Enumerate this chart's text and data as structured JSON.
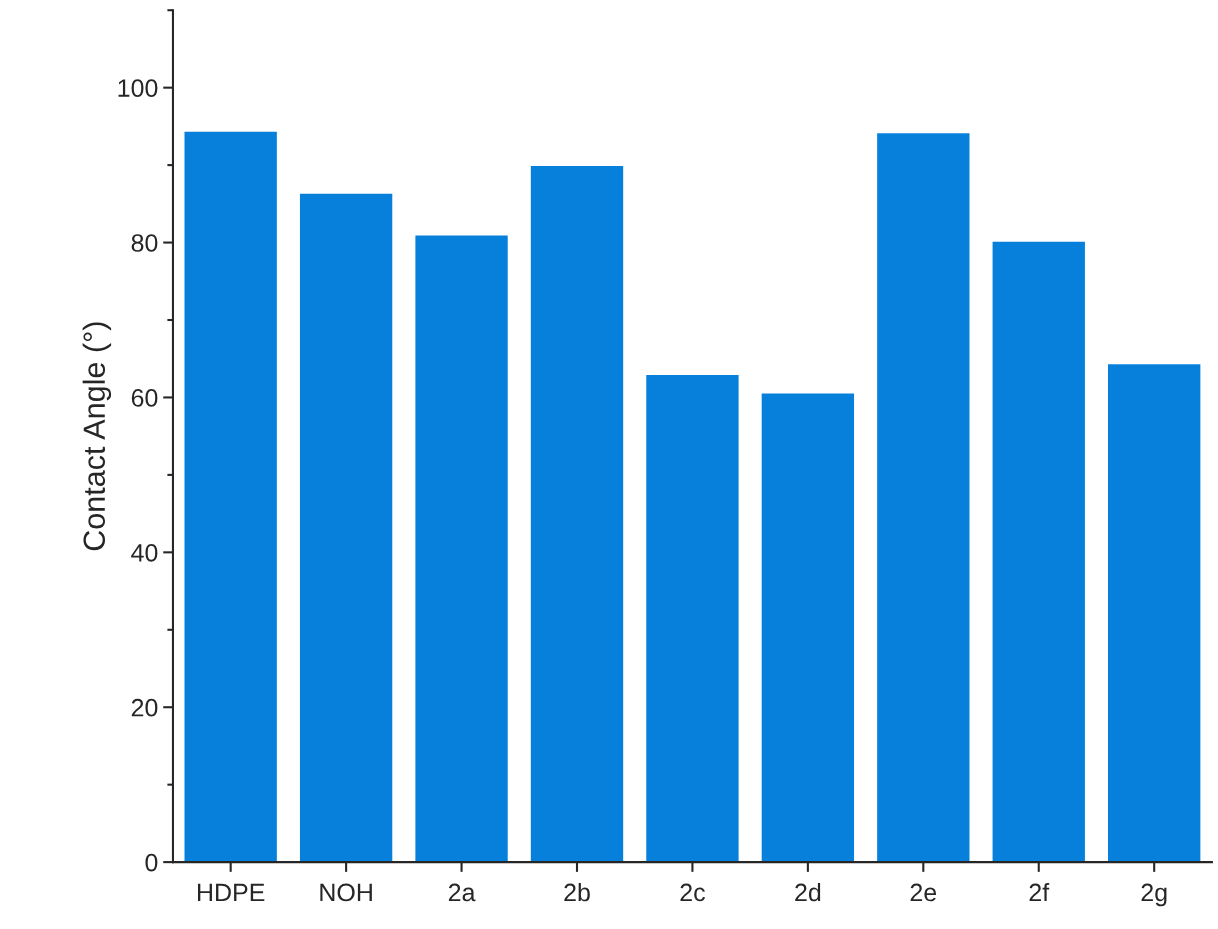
{
  "chart_data": {
    "type": "bar",
    "ylabel": "Contact Angle (°)",
    "categories": [
      "HDPE",
      "NOH",
      "2a",
      "2b",
      "2c",
      "2d",
      "2e",
      "2f",
      "2g"
    ],
    "values": [
      94.3,
      86.3,
      80.9,
      89.9,
      62.9,
      60.5,
      94.1,
      80.1,
      64.3
    ],
    "color": "#0780dc",
    "ylim": [
      0,
      110
    ],
    "yticks": [
      0,
      20,
      40,
      60,
      80,
      100
    ],
    "grid": false,
    "legend": false
  }
}
